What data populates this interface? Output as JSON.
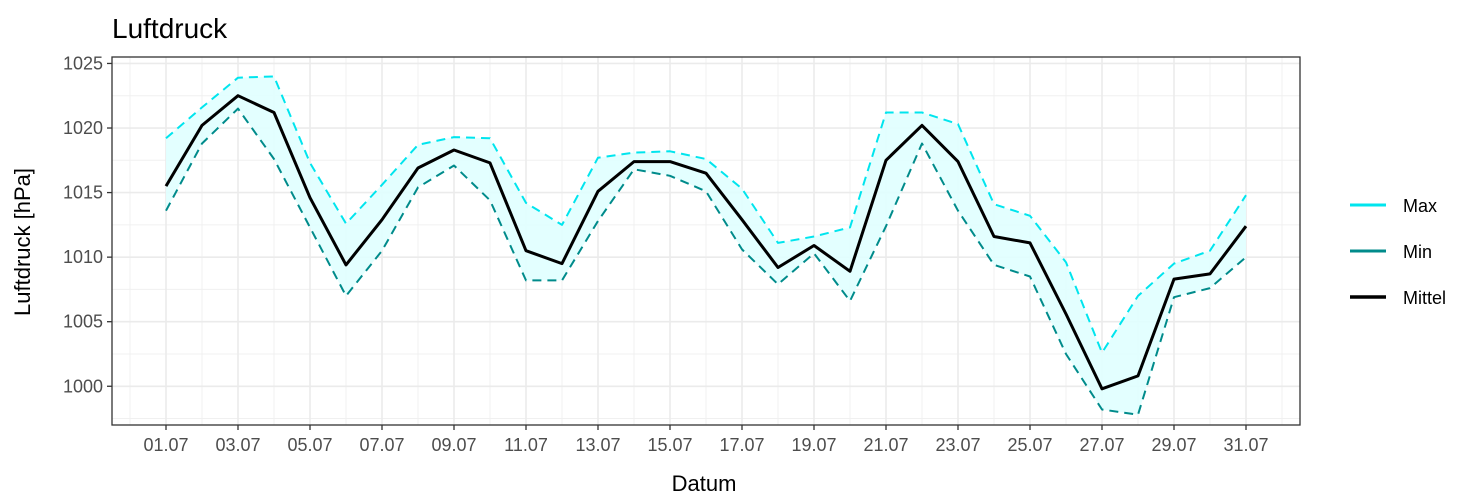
{
  "chart_data": {
    "type": "line",
    "title": "Luftdruck",
    "xlabel": "Datum",
    "ylabel": "Luftdruck [hPa]",
    "ylim": [
      997,
      1025.5
    ],
    "y_ticks": [
      1000,
      1005,
      1010,
      1015,
      1020,
      1025
    ],
    "x_tick_labels": [
      "01.07",
      "03.07",
      "05.07",
      "07.07",
      "09.07",
      "11.07",
      "13.07",
      "15.07",
      "17.07",
      "19.07",
      "21.07",
      "23.07",
      "25.07",
      "27.07",
      "29.07",
      "31.07"
    ],
    "x_tick_days": [
      1,
      3,
      5,
      7,
      9,
      11,
      13,
      15,
      17,
      19,
      21,
      23,
      25,
      27,
      29,
      31
    ],
    "days": [
      1,
      2,
      3,
      4,
      5,
      6,
      7,
      8,
      9,
      10,
      11,
      12,
      13,
      14,
      15,
      16,
      17,
      18,
      19,
      20,
      21,
      22,
      23,
      24,
      25,
      26,
      27,
      28,
      29,
      30,
      31
    ],
    "grid": true,
    "legend_position": "right",
    "series": [
      {
        "name": "Max",
        "color": "#00e5ee",
        "style": "dashed",
        "values": [
          1019.2,
          1021.6,
          1023.9,
          1024.0,
          1017.3,
          1012.6,
          1015.6,
          1018.7,
          1019.3,
          1019.2,
          1014.2,
          1012.5,
          1017.7,
          1018.1,
          1018.2,
          1017.6,
          1015.3,
          1011.1,
          1011.6,
          1012.3,
          1021.2,
          1021.2,
          1020.3,
          1014.1,
          1013.2,
          1009.6,
          1002.6,
          1007.0,
          1009.5,
          1010.5,
          1014.8
        ]
      },
      {
        "name": "Min",
        "color": "#008b8b",
        "style": "dashed",
        "values": [
          1013.6,
          1018.8,
          1021.5,
          1017.6,
          1012.3,
          1007.0,
          1010.5,
          1015.4,
          1017.1,
          1014.4,
          1008.2,
          1008.2,
          1012.8,
          1016.8,
          1016.3,
          1015.1,
          1010.6,
          1007.9,
          1010.3,
          1006.6,
          1012.4,
          1018.8,
          1013.6,
          1009.4,
          1008.5,
          1002.5,
          998.2,
          997.8,
          1006.9,
          1007.6,
          1010.0
        ]
      },
      {
        "name": "Mittel",
        "color": "#000000",
        "style": "solid",
        "values": [
          1015.5,
          1020.2,
          1022.5,
          1021.2,
          1014.6,
          1009.4,
          1012.9,
          1016.9,
          1018.3,
          1017.3,
          1010.5,
          1009.5,
          1015.1,
          1017.4,
          1017.4,
          1016.5,
          1012.9,
          1009.2,
          1010.9,
          1008.9,
          1017.5,
          1020.2,
          1017.4,
          1011.6,
          1011.1,
          1005.6,
          999.8,
          1000.8,
          1008.3,
          1008.7,
          1012.4
        ]
      }
    ],
    "band": {
      "fill": "#e0ffff",
      "opacity": 0.9
    }
  }
}
